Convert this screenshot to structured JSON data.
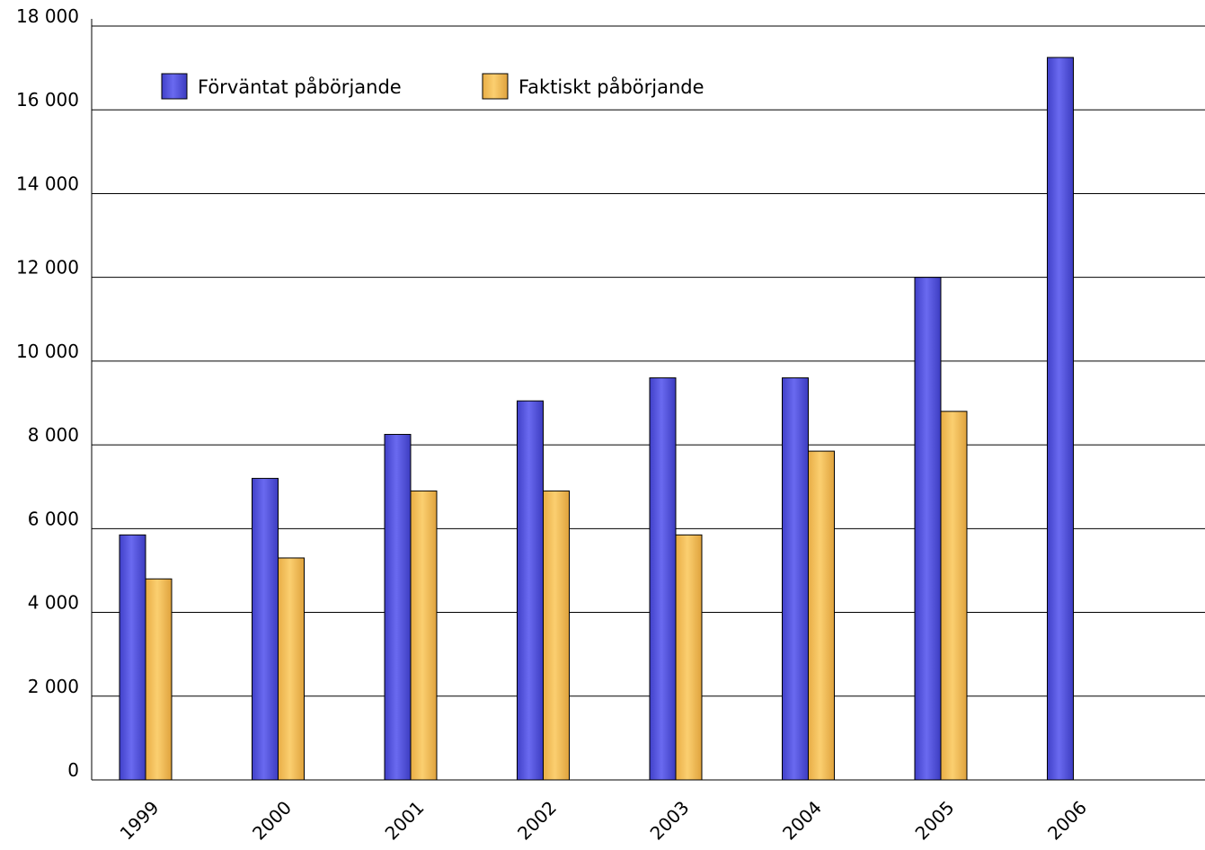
{
  "chart_data": {
    "type": "bar",
    "title": "",
    "xlabel": "",
    "ylabel": "",
    "categories": [
      "1999",
      "2000",
      "2001",
      "2002",
      "2003",
      "2004",
      "2005",
      "2006"
    ],
    "series": [
      {
        "name": "Förväntat påbörjande",
        "color": "#5c5ce6",
        "values": [
          5850,
          7200,
          8250,
          9050,
          9600,
          9600,
          12000,
          17250
        ]
      },
      {
        "name": "Faktiskt påbörjande",
        "color": "#f7c35e",
        "values": [
          4800,
          5300,
          6900,
          6900,
          5850,
          7850,
          8800,
          null
        ]
      }
    ],
    "ylim": [
      0,
      18000
    ],
    "yticks": [
      0,
      2000,
      4000,
      6000,
      8000,
      10000,
      12000,
      14000,
      16000,
      18000
    ],
    "ytick_labels": [
      "0",
      "2 000",
      "4 000",
      "6 000",
      "8 000",
      "10 000",
      "12 000",
      "14 000",
      "16 000",
      "18 000"
    ],
    "grid": true,
    "legend_position": "top-left"
  }
}
